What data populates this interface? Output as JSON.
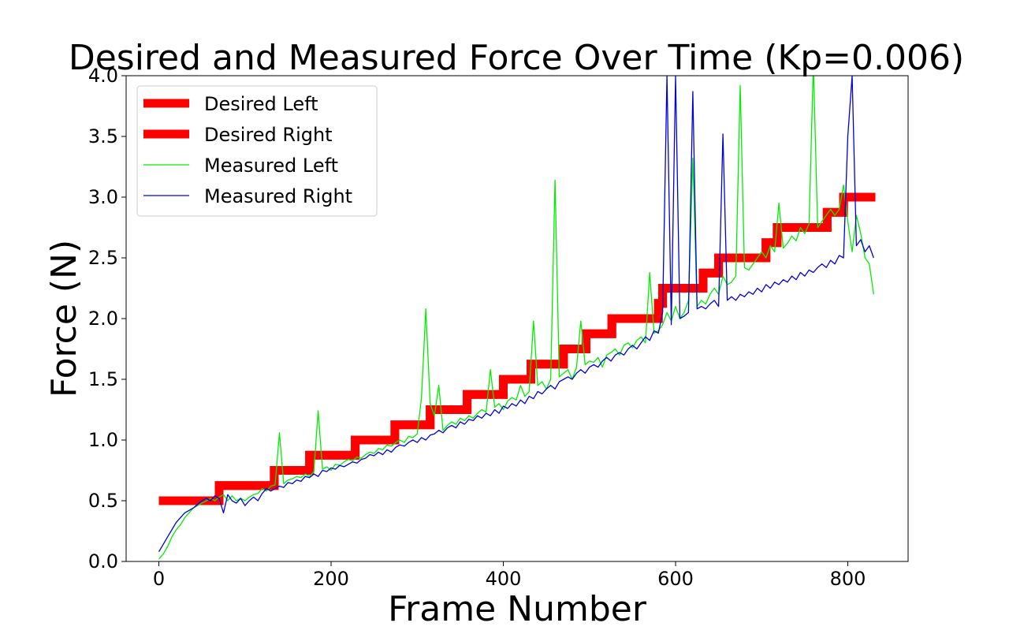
{
  "chart_data": {
    "type": "line",
    "title": "Desired and Measured Force Over Time (Kp=0.006)",
    "xlabel": "Frame Number",
    "ylabel": "Force (N)",
    "xlim": [
      -38,
      870
    ],
    "ylim": [
      0,
      4
    ],
    "xticks": [
      0,
      200,
      400,
      600,
      800
    ],
    "yticks": [
      0.0,
      0.5,
      1.0,
      1.5,
      2.0,
      2.5,
      3.0,
      3.5,
      4.0
    ],
    "xtick_labels": [
      "0",
      "200",
      "400",
      "600",
      "800"
    ],
    "ytick_labels": [
      "0.0",
      "0.5",
      "1.0",
      "1.5",
      "2.0",
      "2.5",
      "3.0",
      "3.5",
      "4.0"
    ],
    "grid": false,
    "legend_position": "top-left",
    "series": [
      {
        "name": "Desired Left",
        "color": "#ff0000",
        "style": "step-thick",
        "x": [
          0,
          70,
          70,
          134,
          134,
          175,
          175,
          228,
          228,
          274,
          274,
          315,
          315,
          358,
          358,
          400,
          400,
          432,
          432,
          470,
          470,
          496,
          496,
          526,
          526,
          580,
          580,
          585,
          585,
          632,
          632,
          650,
          650,
          705,
          705,
          718,
          718,
          776,
          776,
          795,
          795,
          832
        ],
        "y": [
          0.5,
          0.5,
          0.625,
          0.625,
          0.75,
          0.75,
          0.875,
          0.875,
          1.0,
          1.0,
          1.125,
          1.125,
          1.25,
          1.25,
          1.375,
          1.375,
          1.5,
          1.5,
          1.625,
          1.625,
          1.75,
          1.75,
          1.875,
          1.875,
          2.0,
          2.0,
          2.125,
          2.125,
          2.25,
          2.25,
          2.375,
          2.375,
          2.5,
          2.5,
          2.625,
          2.625,
          2.75,
          2.75,
          2.875,
          2.875,
          3.0,
          3.0
        ]
      },
      {
        "name": "Desired Right",
        "color": "#ff0000",
        "style": "step-thick",
        "x": [
          0,
          70,
          70,
          134,
          134,
          175,
          175,
          228,
          228,
          274,
          274,
          315,
          315,
          358,
          358,
          400,
          400,
          432,
          432,
          470,
          470,
          496,
          496,
          526,
          526,
          580,
          580,
          585,
          585,
          632,
          632,
          650,
          650,
          705,
          705,
          718,
          718,
          776,
          776,
          795,
          795,
          832
        ],
        "y": [
          0.5,
          0.5,
          0.625,
          0.625,
          0.75,
          0.75,
          0.875,
          0.875,
          1.0,
          1.0,
          1.125,
          1.125,
          1.25,
          1.25,
          1.375,
          1.375,
          1.5,
          1.5,
          1.625,
          1.625,
          1.75,
          1.75,
          1.875,
          1.875,
          2.0,
          2.0,
          2.125,
          2.125,
          2.25,
          2.25,
          2.375,
          2.375,
          2.5,
          2.5,
          2.625,
          2.625,
          2.75,
          2.75,
          2.875,
          2.875,
          3.0,
          3.0
        ]
      },
      {
        "name": "Measured Left",
        "color": "#00ee00",
        "style": "thin",
        "x": [
          0,
          5,
          10,
          15,
          20,
          25,
          30,
          35,
          40,
          45,
          50,
          55,
          60,
          65,
          70,
          75,
          80,
          85,
          90,
          95,
          100,
          105,
          110,
          115,
          120,
          125,
          130,
          135,
          140,
          145,
          150,
          155,
          160,
          165,
          170,
          175,
          180,
          185,
          190,
          195,
          200,
          205,
          210,
          215,
          220,
          225,
          230,
          235,
          240,
          245,
          250,
          255,
          260,
          265,
          270,
          275,
          280,
          285,
          290,
          295,
          300,
          305,
          310,
          315,
          320,
          325,
          330,
          335,
          340,
          345,
          350,
          355,
          360,
          365,
          370,
          375,
          380,
          385,
          390,
          395,
          400,
          405,
          410,
          415,
          420,
          425,
          430,
          435,
          440,
          445,
          450,
          455,
          460,
          465,
          470,
          475,
          480,
          485,
          490,
          495,
          500,
          505,
          510,
          515,
          520,
          525,
          530,
          535,
          540,
          545,
          550,
          555,
          560,
          565,
          570,
          575,
          580,
          585,
          590,
          595,
          600,
          605,
          610,
          615,
          620,
          625,
          630,
          635,
          640,
          645,
          650,
          655,
          660,
          665,
          670,
          675,
          680,
          685,
          690,
          695,
          700,
          705,
          710,
          715,
          720,
          725,
          730,
          735,
          740,
          745,
          750,
          755,
          760,
          765,
          770,
          775,
          780,
          785,
          790,
          795,
          800,
          805,
          810,
          815,
          820,
          825,
          830
        ],
        "y": [
          0.02,
          0.06,
          0.12,
          0.2,
          0.26,
          0.3,
          0.36,
          0.4,
          0.44,
          0.46,
          0.48,
          0.5,
          0.52,
          0.5,
          0.53,
          0.55,
          0.5,
          0.54,
          0.5,
          0.52,
          0.5,
          0.53,
          0.55,
          0.56,
          0.6,
          0.58,
          0.62,
          0.63,
          1.06,
          0.64,
          0.67,
          0.68,
          0.7,
          0.69,
          0.72,
          0.7,
          0.74,
          1.24,
          0.76,
          0.78,
          0.75,
          0.8,
          0.79,
          0.82,
          0.84,
          0.83,
          0.86,
          0.85,
          0.88,
          0.9,
          0.89,
          0.93,
          0.92,
          0.96,
          0.95,
          0.98,
          1.0,
          0.98,
          1.03,
          1.02,
          1.05,
          1.35,
          2.08,
          1.3,
          1.2,
          1.45,
          1.08,
          1.12,
          1.15,
          1.13,
          1.18,
          1.16,
          1.2,
          1.18,
          1.22,
          1.25,
          1.23,
          1.58,
          1.27,
          1.3,
          1.25,
          1.32,
          1.35,
          1.33,
          1.45,
          1.36,
          1.4,
          1.98,
          1.45,
          1.48,
          1.42,
          1.5,
          3.14,
          1.52,
          1.55,
          1.58,
          1.5,
          1.6,
          1.98,
          1.62,
          1.65,
          1.64,
          1.68,
          1.6,
          1.7,
          1.72,
          1.75,
          1.7,
          1.78,
          1.8,
          1.76,
          1.82,
          1.85,
          1.8,
          2.38,
          1.88,
          1.9,
          1.95,
          2.05,
          1.98,
          2.1,
          2.0,
          2.05,
          2.15,
          3.32,
          2.1,
          2.15,
          2.12,
          2.2,
          2.25,
          2.2,
          2.35,
          2.28,
          2.3,
          2.35,
          3.92,
          2.42,
          2.4,
          2.45,
          2.5,
          2.55,
          2.5,
          2.6,
          2.55,
          2.95,
          2.58,
          2.62,
          2.68,
          2.64,
          2.75,
          2.7,
          2.78,
          4.1,
          2.75,
          2.8,
          2.85,
          2.9,
          2.85,
          2.9,
          3.1,
          2.8,
          2.55,
          2.85,
          2.7,
          2.5,
          2.45,
          2.2
        ]
      },
      {
        "name": "Measured Right",
        "color": "#0000dd",
        "style": "thin",
        "x": [
          0,
          5,
          10,
          15,
          20,
          25,
          30,
          35,
          40,
          45,
          50,
          55,
          60,
          65,
          70,
          75,
          80,
          85,
          90,
          95,
          100,
          105,
          110,
          115,
          120,
          125,
          130,
          135,
          140,
          145,
          150,
          155,
          160,
          165,
          170,
          175,
          180,
          185,
          190,
          195,
          200,
          205,
          210,
          215,
          220,
          225,
          230,
          235,
          240,
          245,
          250,
          255,
          260,
          265,
          270,
          275,
          280,
          285,
          290,
          295,
          300,
          305,
          310,
          315,
          320,
          325,
          330,
          335,
          340,
          345,
          350,
          355,
          360,
          365,
          370,
          375,
          380,
          385,
          390,
          395,
          400,
          405,
          410,
          415,
          420,
          425,
          430,
          435,
          440,
          445,
          450,
          455,
          460,
          465,
          470,
          475,
          480,
          485,
          490,
          495,
          500,
          505,
          510,
          515,
          520,
          525,
          530,
          535,
          540,
          545,
          550,
          555,
          560,
          565,
          570,
          575,
          580,
          585,
          590,
          595,
          600,
          605,
          610,
          615,
          620,
          625,
          630,
          635,
          640,
          645,
          650,
          655,
          660,
          665,
          670,
          675,
          680,
          685,
          690,
          695,
          700,
          705,
          710,
          715,
          720,
          725,
          730,
          735,
          740,
          745,
          750,
          755,
          760,
          765,
          770,
          775,
          780,
          785,
          790,
          795,
          800,
          805,
          810,
          815,
          820,
          825,
          830
        ],
        "y": [
          0.08,
          0.14,
          0.2,
          0.26,
          0.32,
          0.36,
          0.4,
          0.42,
          0.44,
          0.47,
          0.5,
          0.52,
          0.5,
          0.54,
          0.52,
          0.4,
          0.55,
          0.5,
          0.48,
          0.52,
          0.46,
          0.5,
          0.53,
          0.5,
          0.56,
          0.6,
          0.58,
          0.6,
          0.62,
          0.61,
          0.65,
          0.64,
          0.67,
          0.66,
          0.7,
          0.69,
          0.72,
          0.7,
          0.75,
          0.74,
          0.77,
          0.76,
          0.79,
          0.78,
          0.8,
          0.82,
          0.81,
          0.84,
          0.85,
          0.88,
          0.87,
          0.9,
          0.88,
          0.92,
          0.9,
          0.94,
          0.96,
          0.95,
          0.98,
          1.0,
          0.98,
          1.02,
          1.0,
          1.04,
          1.05,
          1.08,
          1.06,
          1.1,
          1.12,
          1.1,
          1.15,
          1.13,
          1.17,
          1.16,
          1.2,
          1.18,
          1.22,
          1.2,
          1.25,
          1.22,
          1.28,
          1.26,
          1.3,
          1.28,
          1.33,
          1.3,
          1.36,
          1.34,
          1.4,
          1.38,
          1.42,
          1.45,
          1.42,
          1.48,
          1.5,
          1.52,
          1.5,
          1.55,
          1.58,
          1.55,
          1.6,
          1.62,
          1.6,
          1.65,
          1.68,
          1.65,
          1.7,
          1.72,
          1.7,
          1.75,
          1.78,
          1.75,
          1.8,
          1.85,
          1.82,
          1.9,
          1.88,
          2.05,
          4.0,
          1.95,
          4.0,
          2.0,
          2.02,
          2.05,
          3.87,
          2.08,
          2.1,
          2.08,
          2.12,
          2.15,
          2.1,
          3.52,
          2.15,
          2.18,
          2.15,
          2.2,
          2.18,
          2.22,
          2.2,
          2.25,
          2.22,
          2.28,
          2.25,
          2.3,
          2.28,
          2.32,
          2.3,
          2.35,
          2.32,
          2.38,
          2.35,
          2.4,
          2.38,
          2.42,
          2.45,
          2.42,
          2.48,
          2.45,
          2.52,
          2.5,
          3.5,
          4.0,
          2.6,
          2.65,
          2.55,
          2.6,
          2.5
        ]
      }
    ]
  }
}
